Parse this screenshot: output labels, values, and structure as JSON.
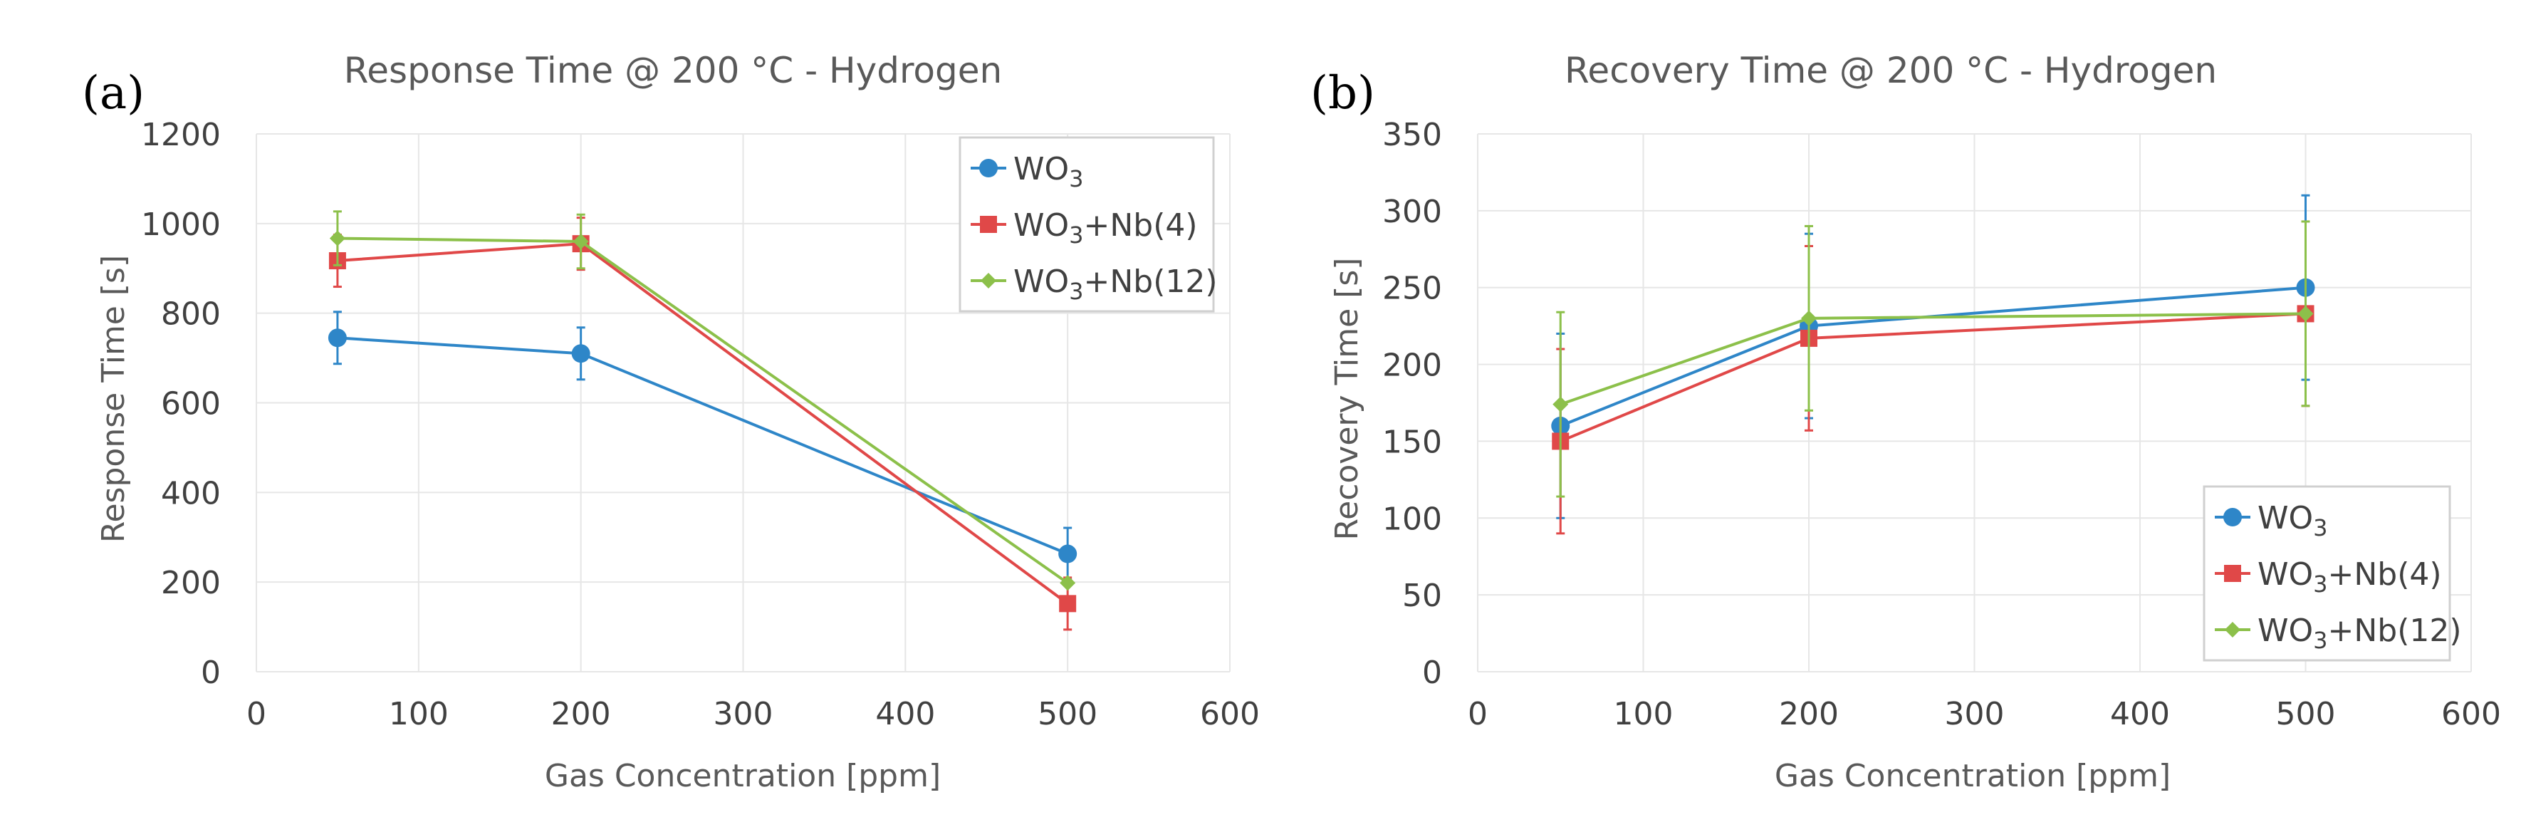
{
  "colors": {
    "WO3": "#2e86c8",
    "WO3_Nb4": "#e04848",
    "WO3_Nb12": "#8cc04a",
    "grid": "#e6e6e6",
    "text": "#595959"
  },
  "chart_data": [
    {
      "id": "response",
      "panel": "(a)",
      "type": "line",
      "title": "Response Time @ 200 °C - Hydrogen",
      "xlabel": "Gas Concentration [ppm]",
      "ylabel": "Response Time [s]",
      "xlim": [
        0,
        600
      ],
      "ylim": [
        0,
        1200
      ],
      "xticks": [
        0,
        100,
        200,
        300,
        400,
        500,
        600
      ],
      "yticks": [
        0,
        200,
        400,
        600,
        800,
        1000,
        1200
      ],
      "grid": true,
      "legend": "top-right",
      "series": [
        {
          "name": "WO3",
          "label_main": "WO",
          "label_sub": "3",
          "label_rest": "",
          "marker": "circle",
          "color": "#2e86c8",
          "x": [
            50,
            200,
            500
          ],
          "y": [
            745,
            710,
            263
          ],
          "err": [
            58,
            58,
            58
          ]
        },
        {
          "name": "WO3+Nb(4)",
          "label_main": "WO",
          "label_sub": "3",
          "label_rest": "+Nb(4)",
          "marker": "square",
          "color": "#e04848",
          "x": [
            50,
            200,
            500
          ],
          "y": [
            917,
            955,
            152
          ],
          "err": [
            58,
            58,
            58
          ]
        },
        {
          "name": "WO3+Nb(12)",
          "label_main": "WO",
          "label_sub": "3",
          "label_rest": "+Nb(12)",
          "marker": "diamond",
          "color": "#8cc04a",
          "x": [
            50,
            200,
            500
          ],
          "y": [
            967,
            960,
            198
          ],
          "err": [
            60,
            60,
            0
          ]
        }
      ]
    },
    {
      "id": "recovery",
      "panel": "(b)",
      "type": "line",
      "title": "Recovery Time @ 200 °C - Hydrogen",
      "xlabel": "Gas Concentration [ppm]",
      "ylabel": "Recovery Time [s]",
      "xlim": [
        0,
        600
      ],
      "ylim": [
        0,
        350
      ],
      "xticks": [
        0,
        100,
        200,
        300,
        400,
        500,
        600
      ],
      "yticks": [
        0,
        50,
        100,
        150,
        200,
        250,
        300,
        350
      ],
      "grid": true,
      "legend": "bottom-right",
      "series": [
        {
          "name": "WO3",
          "label_main": "WO",
          "label_sub": "3",
          "label_rest": "",
          "marker": "circle",
          "color": "#2e86c8",
          "x": [
            50,
            200,
            500
          ],
          "y": [
            160,
            225,
            250
          ],
          "err": [
            60,
            60,
            60
          ]
        },
        {
          "name": "WO3+Nb(4)",
          "label_main": "WO",
          "label_sub": "3",
          "label_rest": "+Nb(4)",
          "marker": "square",
          "color": "#e04848",
          "x": [
            50,
            200,
            500
          ],
          "y": [
            150,
            217,
            233
          ],
          "err": [
            60,
            60,
            60
          ]
        },
        {
          "name": "WO3+Nb(12)",
          "label_main": "WO",
          "label_sub": "3",
          "label_rest": "+Nb(12)",
          "marker": "diamond",
          "color": "#8cc04a",
          "x": [
            50,
            200,
            500
          ],
          "y": [
            174,
            230,
            233
          ],
          "err": [
            60,
            60,
            60
          ]
        }
      ]
    }
  ]
}
